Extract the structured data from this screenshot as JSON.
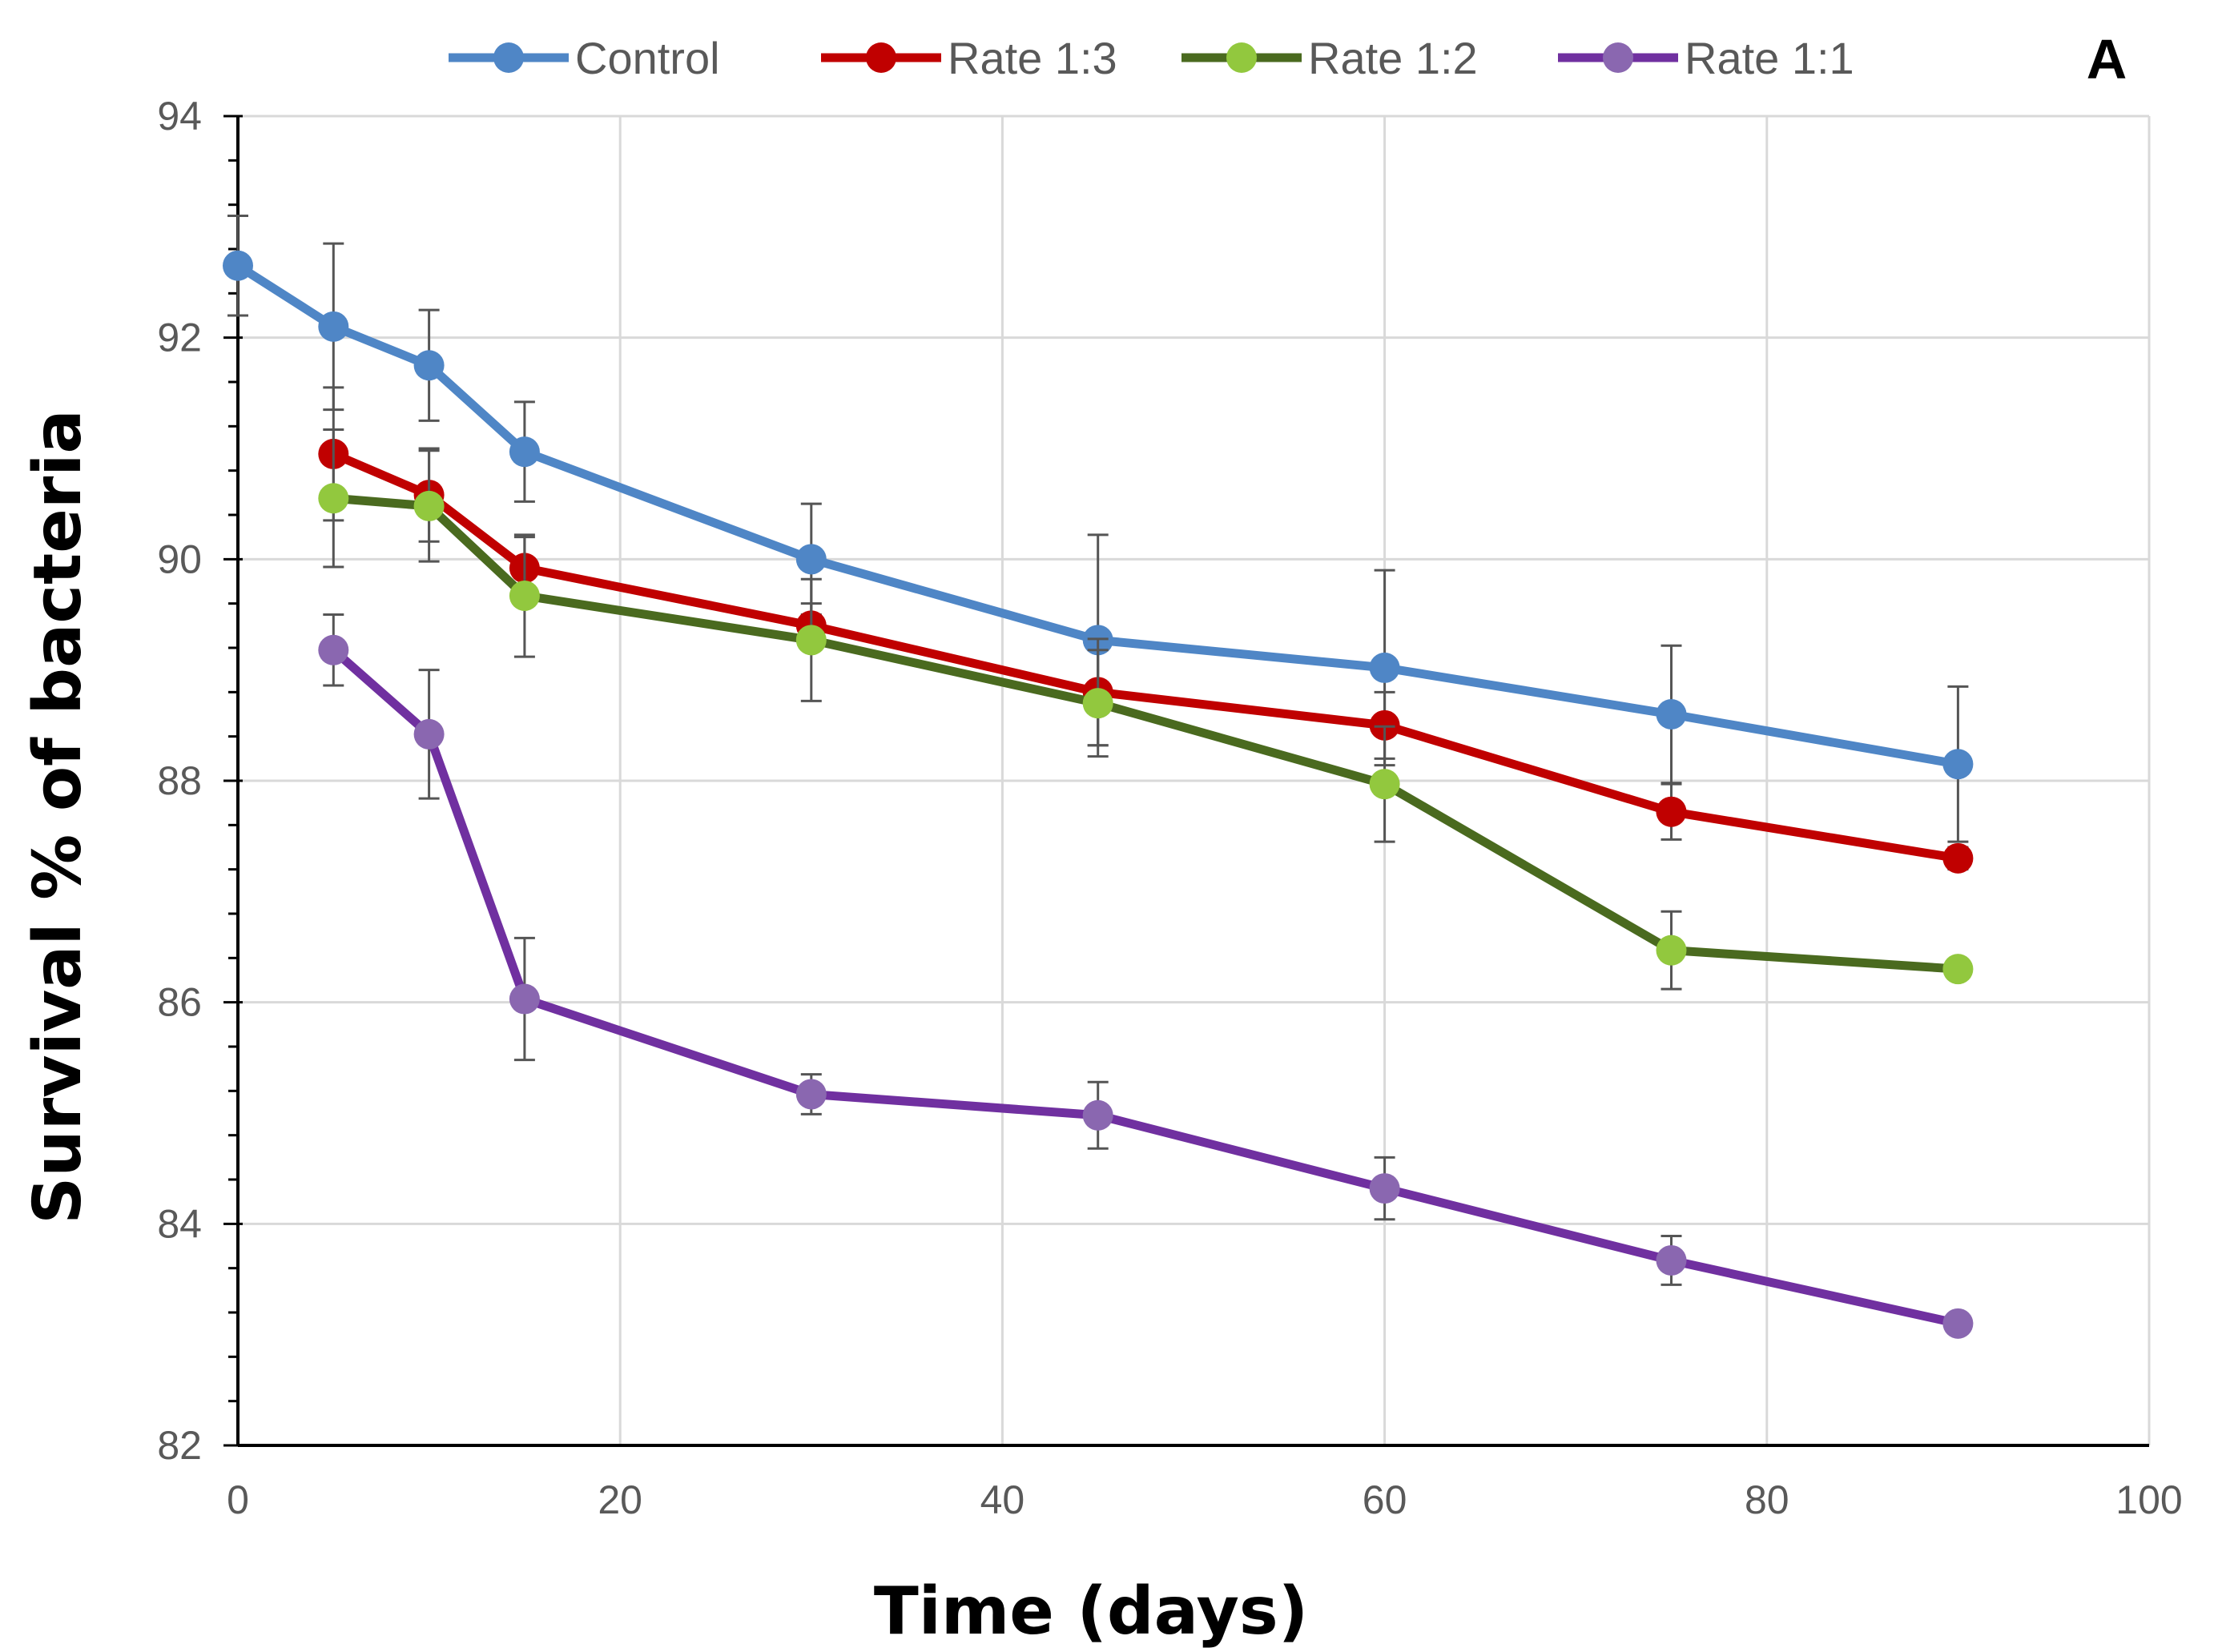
{
  "chart_data": {
    "type": "line",
    "panel_label": "A",
    "title": "",
    "xlabel": "Time (days)",
    "ylabel": "Survival % of bacteria",
    "xlim": [
      0,
      100
    ],
    "ylim": [
      82,
      94
    ],
    "xticks": [
      0,
      20,
      40,
      60,
      80,
      100
    ],
    "yticks": [
      82,
      84,
      86,
      88,
      90,
      92,
      94
    ],
    "grid": true,
    "legend_position": "top",
    "series": [
      {
        "name": "Control",
        "color": "#4f86c6",
        "x": [
          0,
          5,
          10,
          15,
          30,
          45,
          60,
          75,
          90
        ],
        "y": [
          92.65,
          92.1,
          91.75,
          90.97,
          90.0,
          89.27,
          89.02,
          88.6,
          88.15
        ],
        "err": [
          0.45,
          0.75,
          0.5,
          0.45,
          0.5,
          0.95,
          0.88,
          0.62,
          0.7
        ]
      },
      {
        "name": "Rate 1:3",
        "color": "#c00000",
        "x": [
          5,
          10,
          15,
          30,
          45,
          60,
          75,
          90
        ],
        "y": [
          90.95,
          90.58,
          89.92,
          89.4,
          88.8,
          88.5,
          87.72,
          87.3
        ],
        "err": [
          0.6,
          0.42,
          0.28,
          0.2,
          0.48,
          0.3,
          0.25,
          0.1
        ]
      },
      {
        "name": "Rate 1:2",
        "color": "#4a6a1f",
        "marker_color": "#92c83e",
        "x": [
          5,
          10,
          15,
          30,
          45,
          60,
          75,
          90
        ],
        "y": [
          90.55,
          90.48,
          89.67,
          89.27,
          88.7,
          87.97,
          86.47,
          86.3
        ],
        "err": [
          0.62,
          0.5,
          0.55,
          0.55,
          0.48,
          0.52,
          0.35,
          0.08
        ]
      },
      {
        "name": "Rate 1:1",
        "color": "#7030a0",
        "marker_color": "#8a67b0",
        "x": [
          5,
          10,
          15,
          30,
          45,
          60,
          75,
          90
        ],
        "y": [
          89.18,
          88.42,
          86.03,
          85.17,
          84.98,
          84.32,
          83.67,
          83.1
        ],
        "err": [
          0.32,
          0.58,
          0.55,
          0.18,
          0.3,
          0.28,
          0.22,
          0.08
        ]
      }
    ]
  }
}
